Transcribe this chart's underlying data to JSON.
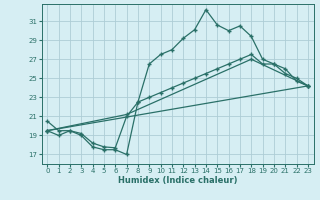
{
  "xlabel": "Humidex (Indice chaleur)",
  "bg_color": "#d6eef3",
  "grid_color": "#aecdd6",
  "line_color": "#2a7068",
  "xlim": [
    -0.5,
    23.5
  ],
  "ylim": [
    16.0,
    32.8
  ],
  "xticks": [
    0,
    1,
    2,
    3,
    4,
    5,
    6,
    7,
    8,
    9,
    10,
    11,
    12,
    13,
    14,
    15,
    16,
    17,
    18,
    19,
    20,
    21,
    22,
    23
  ],
  "yticks": [
    17,
    19,
    21,
    23,
    25,
    27,
    29,
    31
  ],
  "line1_x": [
    0,
    1,
    2,
    3,
    4,
    5,
    6,
    7,
    8,
    9,
    10,
    11,
    12,
    13,
    14,
    15,
    16,
    17,
    18,
    19,
    20,
    21,
    22,
    23
  ],
  "line1_y": [
    20.5,
    19.5,
    19.5,
    19.0,
    17.8,
    17.5,
    17.5,
    17.0,
    22.5,
    26.5,
    27.5,
    28.0,
    29.2,
    30.1,
    32.2,
    30.6,
    30.0,
    30.5,
    29.4,
    27.0,
    26.5,
    25.5,
    25.0,
    24.2
  ],
  "line2_x": [
    0,
    1,
    2,
    3,
    4,
    5,
    6,
    7,
    8,
    9,
    10,
    11,
    12,
    13,
    14,
    15,
    16,
    17,
    18,
    19,
    20,
    21,
    22,
    23
  ],
  "line2_y": [
    19.5,
    19.0,
    19.5,
    19.2,
    18.2,
    17.8,
    17.7,
    21.0,
    22.5,
    23.0,
    23.5,
    24.0,
    24.5,
    25.0,
    25.5,
    26.0,
    26.5,
    27.0,
    27.5,
    26.5,
    26.5,
    26.0,
    24.7,
    24.2
  ],
  "line3_x": [
    0,
    23
  ],
  "line3_y": [
    19.5,
    24.2
  ],
  "line4_x": [
    0,
    7,
    18,
    23
  ],
  "line4_y": [
    19.5,
    21.2,
    27.0,
    24.2
  ],
  "marker_size": 2.5,
  "linewidth": 0.9,
  "xlabel_fontsize": 6.0,
  "tick_fontsize": 5.0
}
